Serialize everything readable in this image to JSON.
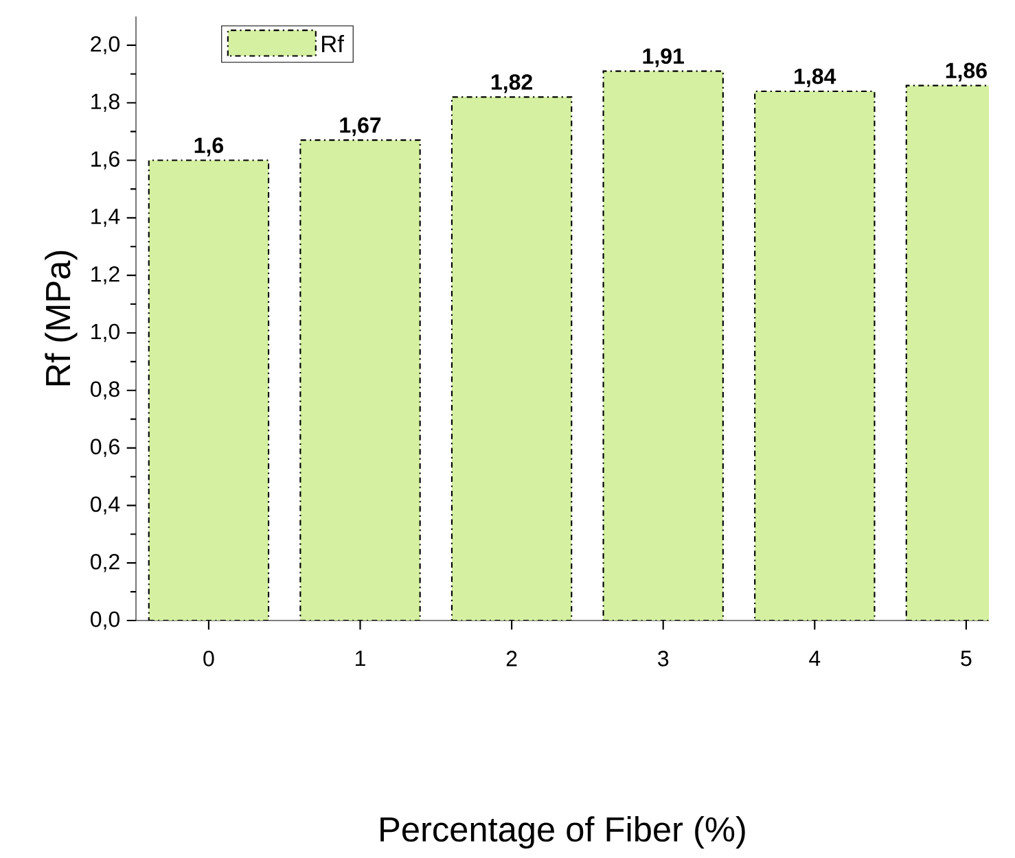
{
  "chart_data": {
    "type": "bar",
    "xlabel": "Percentage of Fiber (%)",
    "ylabel": "Rf (MPa)",
    "categories": [
      "0",
      "1",
      "2",
      "3",
      "4",
      "5"
    ],
    "series": [
      {
        "name": "Rf",
        "color": "#d4f0a0",
        "values": [
          1.6,
          1.67,
          1.82,
          1.91,
          1.84,
          1.86
        ],
        "value_labels": [
          "1,6",
          "1,67",
          "1,82",
          "1,91",
          "1,84",
          "1,86"
        ]
      }
    ],
    "ylim": [
      0,
      2.1
    ],
    "yticks": [
      {
        "value": 0,
        "label": "0,0"
      },
      {
        "value": 0.2,
        "label": "0,2"
      },
      {
        "value": 0.4,
        "label": "0,4"
      },
      {
        "value": 0.6,
        "label": "0,6"
      },
      {
        "value": 0.8,
        "label": "0,8"
      },
      {
        "value": 1.0,
        "label": "1,0"
      },
      {
        "value": 1.2,
        "label": "1,2"
      },
      {
        "value": 1.4,
        "label": "1,4"
      },
      {
        "value": 1.6,
        "label": "1,6"
      },
      {
        "value": 1.8,
        "label": "1,8"
      },
      {
        "value": 2.0,
        "label": "2,0"
      }
    ],
    "legend": "top left",
    "grid": false,
    "line_style": "dashdotted"
  }
}
